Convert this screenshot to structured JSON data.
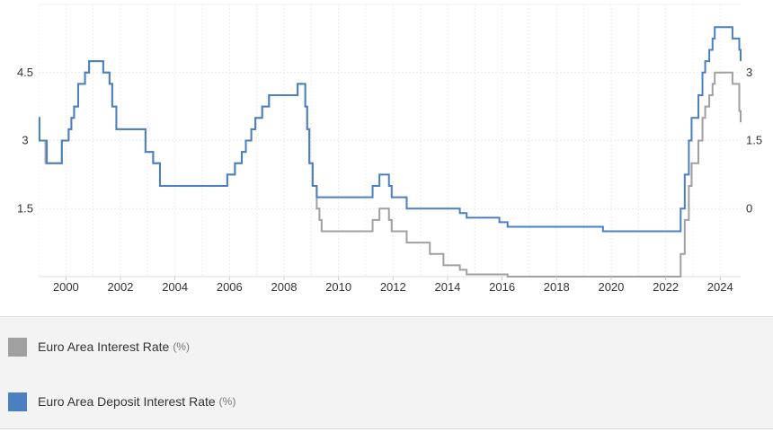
{
  "chart_data": {
    "type": "line",
    "title": "",
    "xlabel": "",
    "ylabel": "",
    "x_ticks": [
      "2000",
      "2002",
      "2004",
      "2006",
      "2008",
      "2010",
      "2012",
      "2014",
      "2016",
      "2018",
      "2020",
      "2022",
      "2024"
    ],
    "xlim": [
      1999.0,
      2024.75
    ],
    "grid": true,
    "legend_placement": "bottom",
    "left_axis": {
      "ticks": [
        "4.5",
        "3",
        "1.5"
      ],
      "tick_values": [
        4.5,
        3,
        1.5
      ],
      "ylim": [
        0,
        6
      ],
      "series": "Euro Area Interest Rate"
    },
    "right_axis": {
      "ticks": [
        "3",
        "1.5",
        "0"
      ],
      "tick_values": [
        3,
        1.5,
        0
      ],
      "ylim": [
        -1.5,
        4.5
      ],
      "series": "Euro Area Deposit Interest Rate"
    },
    "series": [
      {
        "name": "Euro Area Interest Rate",
        "unit": "(%)",
        "color": "#a0a0a0",
        "axis": "left",
        "points": [
          [
            1999.0,
            3.0
          ],
          [
            1999.25,
            2.5
          ],
          [
            1999.85,
            3.0
          ],
          [
            2000.1,
            3.25
          ],
          [
            2000.2,
            3.5
          ],
          [
            2000.3,
            3.75
          ],
          [
            2000.45,
            4.25
          ],
          [
            2000.7,
            4.5
          ],
          [
            2000.85,
            4.75
          ],
          [
            2001.37,
            4.5
          ],
          [
            2001.6,
            4.25
          ],
          [
            2001.7,
            3.75
          ],
          [
            2001.85,
            3.25
          ],
          [
            2002.92,
            2.75
          ],
          [
            2003.2,
            2.5
          ],
          [
            2003.45,
            2.0
          ],
          [
            2005.92,
            2.25
          ],
          [
            2006.2,
            2.5
          ],
          [
            2006.45,
            2.75
          ],
          [
            2006.6,
            3.0
          ],
          [
            2006.8,
            3.25
          ],
          [
            2006.95,
            3.5
          ],
          [
            2007.2,
            3.75
          ],
          [
            2007.45,
            4.0
          ],
          [
            2008.5,
            4.25
          ],
          [
            2008.78,
            3.75
          ],
          [
            2008.85,
            3.25
          ],
          [
            2008.93,
            2.5
          ],
          [
            2009.05,
            2.0
          ],
          [
            2009.2,
            1.5
          ],
          [
            2009.3,
            1.25
          ],
          [
            2009.38,
            1.0
          ],
          [
            2011.25,
            1.25
          ],
          [
            2011.5,
            1.5
          ],
          [
            2011.85,
            1.25
          ],
          [
            2011.95,
            1.0
          ],
          [
            2012.5,
            0.75
          ],
          [
            2013.35,
            0.5
          ],
          [
            2013.85,
            0.25
          ],
          [
            2014.45,
            0.15
          ],
          [
            2014.7,
            0.05
          ],
          [
            2016.2,
            0.0
          ],
          [
            2022.55,
            0.5
          ],
          [
            2022.7,
            1.25
          ],
          [
            2022.85,
            2.0
          ],
          [
            2022.95,
            2.5
          ],
          [
            2023.2,
            3.0
          ],
          [
            2023.35,
            3.5
          ],
          [
            2023.45,
            3.75
          ],
          [
            2023.6,
            4.0
          ],
          [
            2023.72,
            4.25
          ],
          [
            2023.8,
            4.5
          ],
          [
            2024.45,
            4.25
          ],
          [
            2024.7,
            3.65
          ],
          [
            2024.75,
            3.4
          ]
        ]
      },
      {
        "name": "Euro Area Deposit Interest Rate",
        "unit": "(%)",
        "color": "#4a7fc1",
        "axis": "right",
        "points": [
          [
            1999.0,
            2.0
          ],
          [
            1999.03,
            1.5
          ],
          [
            1999.3,
            1.0
          ],
          [
            1999.85,
            1.5
          ],
          [
            2000.1,
            1.75
          ],
          [
            2000.2,
            2.0
          ],
          [
            2000.3,
            2.25
          ],
          [
            2000.45,
            2.75
          ],
          [
            2000.7,
            3.0
          ],
          [
            2000.85,
            3.25
          ],
          [
            2001.37,
            3.0
          ],
          [
            2001.6,
            2.75
          ],
          [
            2001.7,
            2.25
          ],
          [
            2001.85,
            1.75
          ],
          [
            2002.92,
            1.25
          ],
          [
            2003.2,
            1.0
          ],
          [
            2003.45,
            0.5
          ],
          [
            2005.92,
            0.75
          ],
          [
            2006.2,
            1.0
          ],
          [
            2006.45,
            1.25
          ],
          [
            2006.6,
            1.5
          ],
          [
            2006.8,
            1.75
          ],
          [
            2006.95,
            2.0
          ],
          [
            2007.2,
            2.25
          ],
          [
            2007.45,
            2.5
          ],
          [
            2008.5,
            2.75
          ],
          [
            2008.78,
            2.25
          ],
          [
            2008.85,
            1.75
          ],
          [
            2008.93,
            1.0
          ],
          [
            2009.05,
            0.5
          ],
          [
            2009.2,
            0.25
          ],
          [
            2011.25,
            0.5
          ],
          [
            2011.5,
            0.75
          ],
          [
            2011.85,
            0.5
          ],
          [
            2011.95,
            0.25
          ],
          [
            2012.5,
            0.0
          ],
          [
            2014.45,
            -0.1
          ],
          [
            2014.7,
            -0.2
          ],
          [
            2015.9,
            -0.3
          ],
          [
            2016.2,
            -0.4
          ],
          [
            2019.7,
            -0.5
          ],
          [
            2022.55,
            0.0
          ],
          [
            2022.7,
            0.75
          ],
          [
            2022.85,
            1.5
          ],
          [
            2022.95,
            2.0
          ],
          [
            2023.2,
            2.5
          ],
          [
            2023.35,
            3.0
          ],
          [
            2023.45,
            3.25
          ],
          [
            2023.6,
            3.5
          ],
          [
            2023.72,
            3.75
          ],
          [
            2023.8,
            4.0
          ],
          [
            2024.45,
            3.75
          ],
          [
            2024.7,
            3.5
          ],
          [
            2024.75,
            3.25
          ]
        ]
      }
    ]
  }
}
